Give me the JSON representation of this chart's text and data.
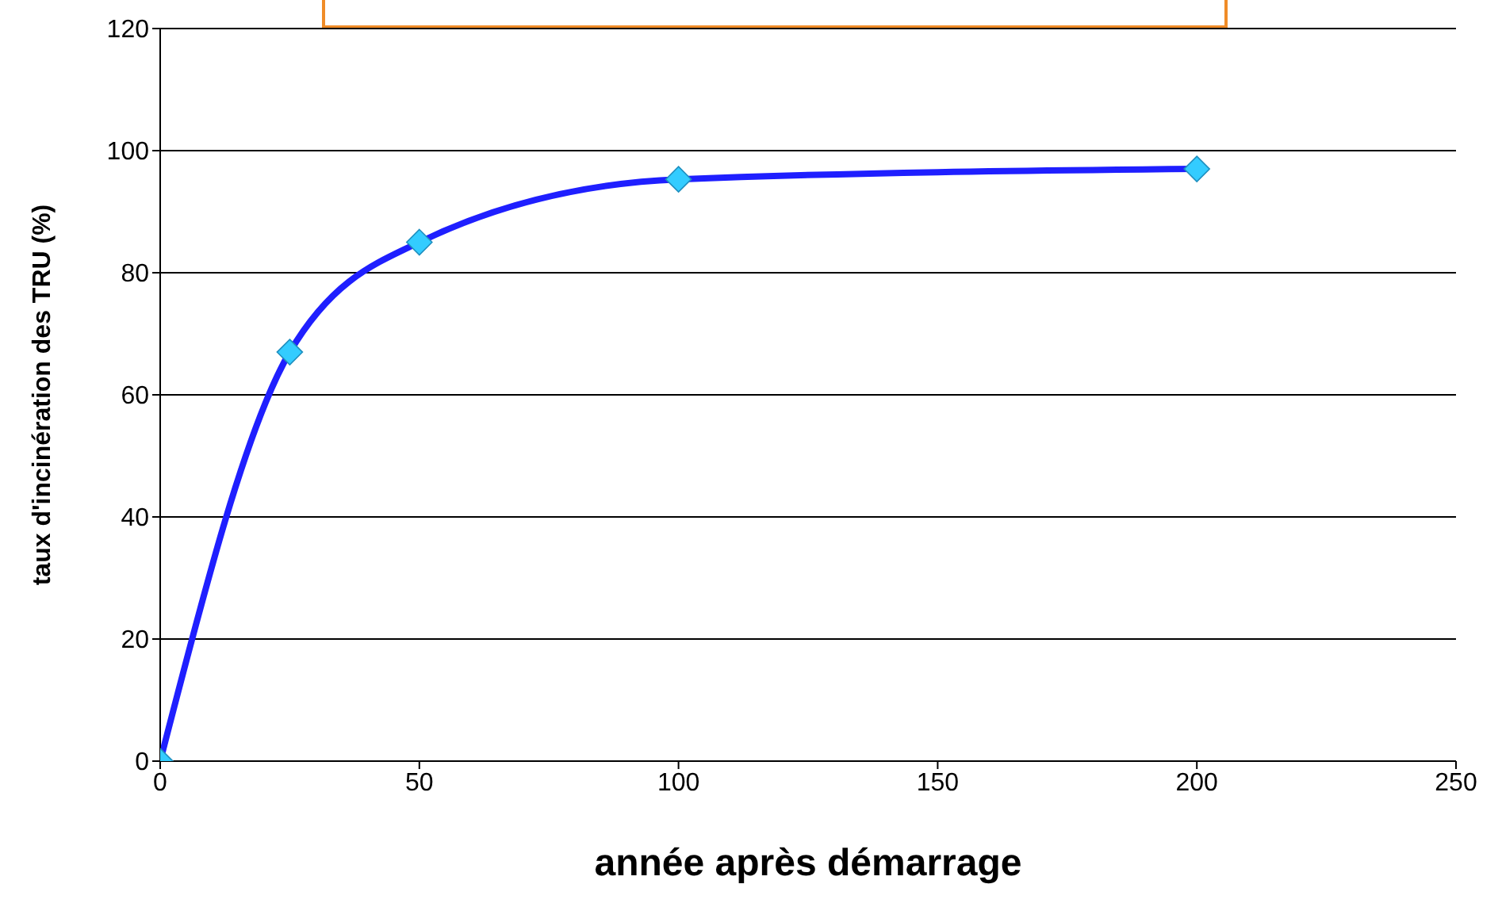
{
  "chart_data": {
    "type": "line",
    "xlabel": "année après démarrage",
    "ylabel": "taux d'incinération des TRU (%)",
    "x": [
      0,
      25,
      50,
      100,
      200
    ],
    "series": [
      {
        "color": "#1f1fff",
        "values": [
          0,
          67,
          85,
          95.3,
          97
        ]
      }
    ],
    "xlim": [
      0,
      250
    ],
    "xticks": [
      0,
      50,
      100,
      150,
      200,
      250
    ],
    "ylim": [
      0,
      120
    ],
    "yticks": [
      0,
      20,
      40,
      60,
      80,
      100,
      120
    ],
    "grid": "y",
    "marker": "diamond",
    "legend": false
  }
}
